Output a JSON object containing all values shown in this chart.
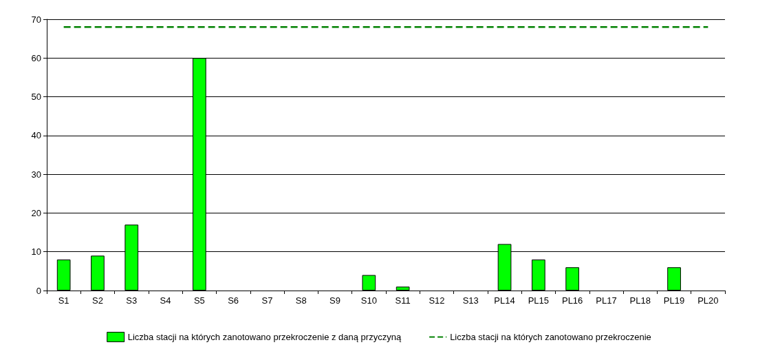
{
  "chart_data": {
    "type": "bar",
    "categories": [
      "S1",
      "S2",
      "S3",
      "S4",
      "S5",
      "S6",
      "S7",
      "S8",
      "S9",
      "S10",
      "S11",
      "S12",
      "S13",
      "PL14",
      "PL15",
      "PL16",
      "PL17",
      "PL18",
      "PL19",
      "PL20"
    ],
    "series": [
      {
        "name": "Liczba stacji na których zanotowano przekroczenie z daną przyczyną",
        "color": "#00ff00",
        "values": [
          8,
          9,
          17,
          0,
          60,
          0,
          0,
          0,
          0,
          4,
          1,
          0,
          0,
          12,
          8,
          6,
          0,
          0,
          6,
          0
        ]
      },
      {
        "name": "Liczba stacji na których zanotowano przekroczenie",
        "type": "line",
        "color": "#008000",
        "line_style": "dashed",
        "marker": "none",
        "values": [
          68,
          68,
          68,
          68,
          68,
          68,
          68,
          68,
          68,
          68,
          68,
          68,
          68,
          68,
          68,
          68,
          68,
          68,
          68,
          68
        ]
      }
    ],
    "ylim": [
      0,
      70
    ],
    "yticks": [
      0,
      10,
      20,
      30,
      40,
      50,
      60,
      70
    ],
    "grid": "y",
    "legend": "bottom"
  }
}
